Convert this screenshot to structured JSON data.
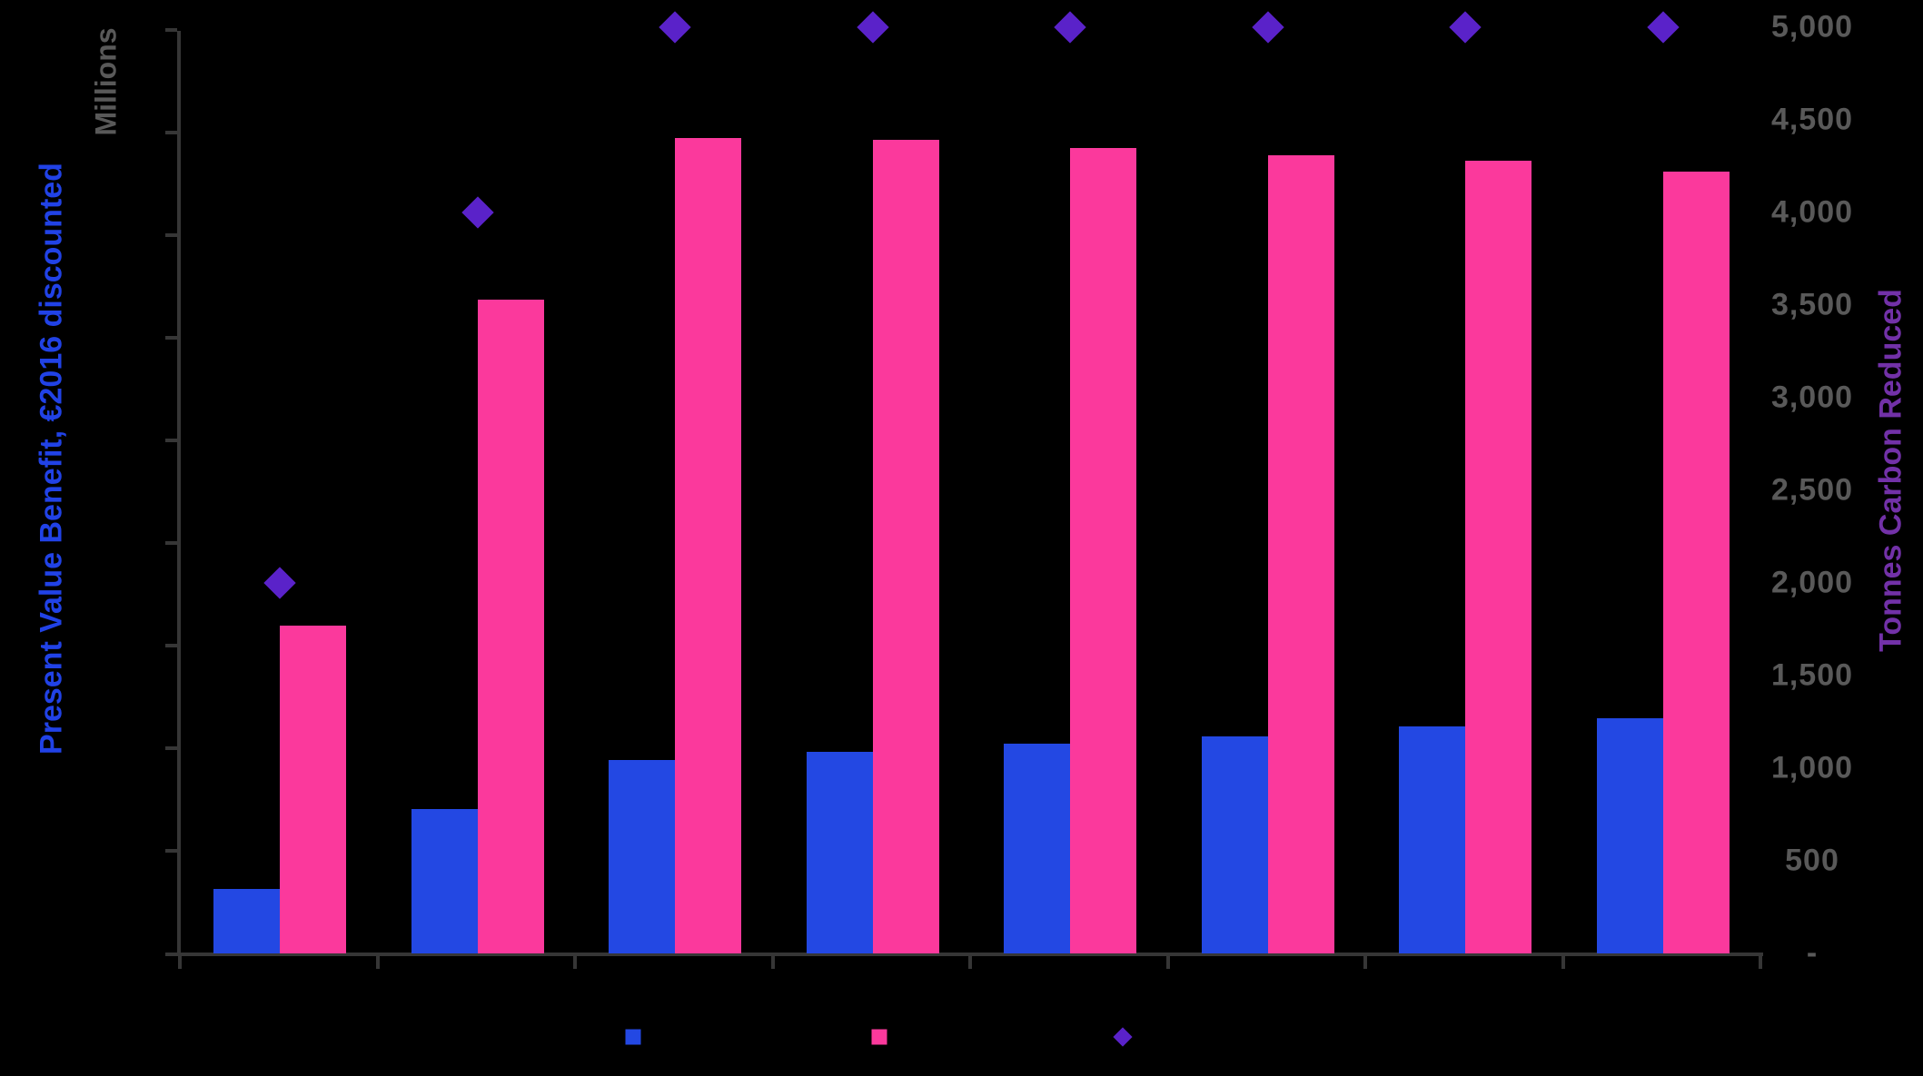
{
  "page": {
    "background": "#000000",
    "note": "bar-column combo chart on black/transparent background; x-axis category labels, left-axis tick labels, legend texts and chart title are not visible (black-on-black)"
  },
  "colors": {
    "blue_bar": "#2348E3",
    "pink_bar": "#FB399C",
    "diamond_marker": "#5A22C9",
    "left_title_text": "#2142E6",
    "right_title_text": "#7231A8",
    "axis_line": "#363636",
    "tick_label_text": "#595959"
  },
  "chart_data": {
    "type": "bar",
    "title": "",
    "categories": [
      "",
      "",
      "",
      "",
      "",
      "",
      "",
      ""
    ],
    "category_labels_visible": false,
    "series": [
      {
        "name": "",
        "marker": "square",
        "color": "#2348E3",
        "axis": "left",
        "value_scale_note": "left axis (Millions) tick labels not visible; values estimated on right-axis-equivalent 0-5000 pixel scale",
        "values": [
          350,
          780,
          1045,
          1090,
          1130,
          1170,
          1225,
          1270
        ]
      },
      {
        "name": "",
        "marker": "square",
        "color": "#FB399C",
        "axis": "right",
        "values": [
          1770,
          3530,
          4400,
          4390,
          4350,
          4310,
          4280,
          4220
        ]
      },
      {
        "name": "",
        "marker": "diamond",
        "color": "#5A22C9",
        "axis": "right",
        "values": [
          2000,
          4000,
          5000,
          5000,
          5000,
          5000,
          5000,
          5000
        ]
      }
    ],
    "left_axis": {
      "title": "Present Value Benefit, €2016 discounted",
      "display_unit": "Millions",
      "tick_labels_visible": false,
      "tick_count": 10
    },
    "right_axis": {
      "title": "Tonnes Carbon Reduced",
      "min": 0,
      "max": 5000,
      "tick_labels": [
        "5,000",
        "4,500",
        "4,000",
        "3,500",
        "3,000",
        "2,500",
        "2,000",
        "1,500",
        "1,000",
        "500",
        "-"
      ]
    },
    "legend_position": "bottom",
    "legend_labels_visible": false,
    "grid": false
  },
  "legend": {
    "entries": [
      {
        "label": "",
        "marker": "square",
        "color": "#2348E3"
      },
      {
        "label": "",
        "marker": "square",
        "color": "#FB399C"
      },
      {
        "label": "",
        "marker": "diamond",
        "color": "#5A22C9"
      }
    ]
  }
}
